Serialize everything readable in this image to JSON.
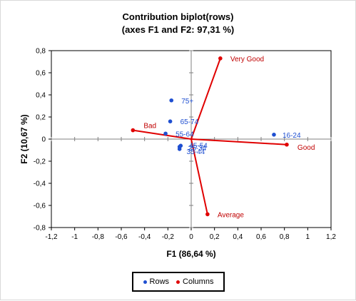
{
  "chart_data": {
    "type": "scatter",
    "title_line1": "Contribution biplot(rows)",
    "title_line2": "(axes F1 and F2: 97,31 %)",
    "xlabel": "F1 (86,64 %)",
    "ylabel": "F2 (10,67 %)",
    "xlim": [
      -1.2,
      1.2
    ],
    "ylim": [
      -0.8,
      0.8
    ],
    "x_ticks": [
      "-1,2",
      "-1",
      "-0,8",
      "-0,6",
      "-0,4",
      "-0,2",
      "0",
      "0,2",
      "0,4",
      "0,6",
      "0,8",
      "1",
      "1,2"
    ],
    "y_ticks": [
      "0,8",
      "0,6",
      "0,4",
      "0,2",
      "0",
      "-0,2",
      "-0,4",
      "-0,6",
      "-0,8"
    ],
    "series": [
      {
        "name": "Rows",
        "color": "#1f4fd1",
        "points": [
          {
            "label": "75+",
            "x": -0.17,
            "y": 0.35
          },
          {
            "label": "65-74",
            "x": -0.18,
            "y": 0.16
          },
          {
            "label": "55-64",
            "x": -0.22,
            "y": 0.05
          },
          {
            "label": "16-24",
            "x": 0.71,
            "y": 0.04
          },
          {
            "label": "45-54",
            "x": -0.09,
            "y": -0.06
          },
          {
            "label": "25-34",
            "x": -0.1,
            "y": -0.07
          },
          {
            "label": "35-44",
            "x": -0.1,
            "y": -0.09
          }
        ]
      },
      {
        "name": "Columns",
        "color": "#e00000",
        "points": [
          {
            "label": "Very Good",
            "x": 0.25,
            "y": 0.73
          },
          {
            "label": "Bad",
            "x": -0.5,
            "y": 0.08
          },
          {
            "label": "Good",
            "x": 0.82,
            "y": -0.05
          },
          {
            "label": "Average",
            "x": 0.14,
            "y": -0.68
          }
        ]
      }
    ],
    "legend_position": "bottom"
  }
}
